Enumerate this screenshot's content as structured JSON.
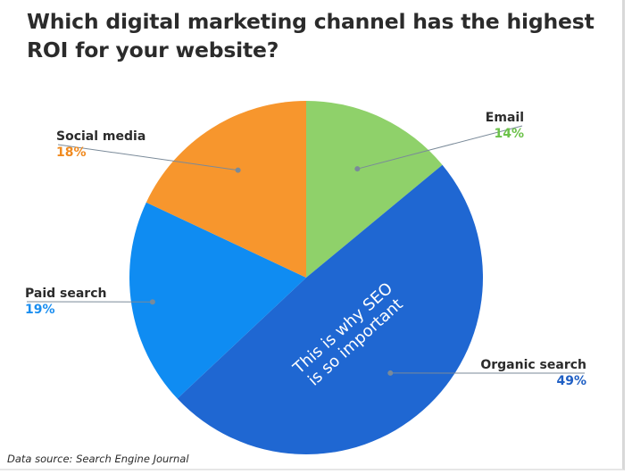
{
  "chart_data": {
    "type": "pie",
    "title": "Which digital marketing channel has the highest ROI for your website?",
    "slices": [
      {
        "label": "Email",
        "value": 14,
        "value_label": "14%",
        "color": "#8fd16a",
        "label_color": "#6cc24a"
      },
      {
        "label": "Organic search",
        "value": 49,
        "value_label": "49%",
        "color": "#1f67d2",
        "label_color": "#1f5fc4"
      },
      {
        "label": "Paid search",
        "value": 19,
        "value_label": "19%",
        "color": "#0f8cf2",
        "label_color": "#1a8ef0"
      },
      {
        "label": "Social media",
        "value": 18,
        "value_label": "18%",
        "color": "#f7962d",
        "label_color": "#f08a1f"
      }
    ],
    "annotation": [
      "This is why SEO",
      "is so important"
    ],
    "source": "Data source: Search Engine Journal"
  }
}
